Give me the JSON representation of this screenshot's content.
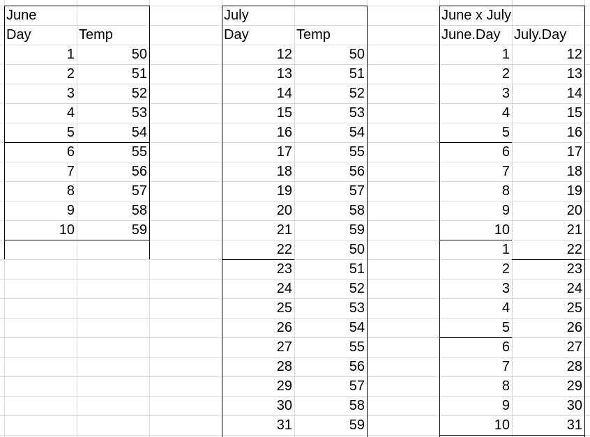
{
  "tables": {
    "june": {
      "title": "June",
      "headers": [
        "Day",
        "Temp"
      ],
      "rows": [
        [
          1,
          50
        ],
        [
          2,
          51
        ],
        [
          3,
          52
        ],
        [
          4,
          53
        ],
        [
          5,
          54
        ],
        [
          6,
          55
        ],
        [
          7,
          56
        ],
        [
          8,
          57
        ],
        [
          9,
          58
        ],
        [
          10,
          59
        ]
      ]
    },
    "july": {
      "title": "July",
      "headers": [
        "Day",
        "Temp"
      ],
      "rows": [
        [
          12,
          50
        ],
        [
          13,
          51
        ],
        [
          14,
          52
        ],
        [
          15,
          53
        ],
        [
          16,
          54
        ],
        [
          17,
          55
        ],
        [
          18,
          56
        ],
        [
          19,
          57
        ],
        [
          20,
          58
        ],
        [
          21,
          59
        ],
        [
          22,
          50
        ],
        [
          23,
          51
        ],
        [
          24,
          52
        ],
        [
          25,
          53
        ],
        [
          26,
          54
        ],
        [
          27,
          55
        ],
        [
          28,
          56
        ],
        [
          29,
          57
        ],
        [
          30,
          58
        ],
        [
          31,
          59
        ]
      ]
    },
    "cross": {
      "title": "June x July",
      "headers": [
        "June.Day",
        "July.Day"
      ],
      "rows": [
        [
          1,
          12
        ],
        [
          2,
          13
        ],
        [
          3,
          14
        ],
        [
          4,
          15
        ],
        [
          5,
          16
        ],
        [
          6,
          17
        ],
        [
          7,
          18
        ],
        [
          8,
          19
        ],
        [
          9,
          20
        ],
        [
          10,
          21
        ],
        [
          1,
          22
        ],
        [
          2,
          23
        ],
        [
          3,
          24
        ],
        [
          4,
          25
        ],
        [
          5,
          26
        ],
        [
          6,
          27
        ],
        [
          7,
          28
        ],
        [
          8,
          29
        ],
        [
          9,
          30
        ],
        [
          10,
          31
        ]
      ]
    }
  }
}
